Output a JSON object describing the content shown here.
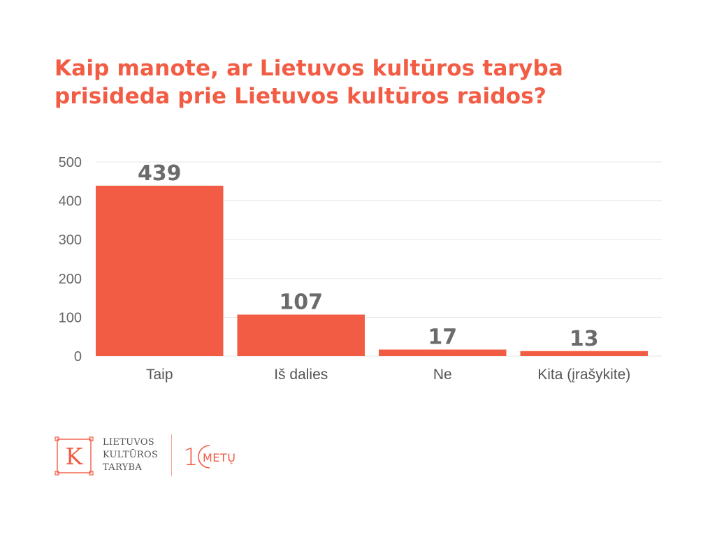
{
  "chart_data": {
    "type": "bar",
    "title": [
      "Kaip manote, ar Lietuvos kultūros taryba",
      "prisideda prie Lietuvos kultūros raidos?"
    ],
    "categories": [
      "Taip",
      "Iš dalies",
      "Ne",
      "Kita (įrašykite)"
    ],
    "values": [
      439,
      107,
      17,
      13
    ],
    "data_labels": [
      "439",
      "107",
      "17",
      "13"
    ],
    "yticks": [
      "0",
      "100",
      "200",
      "300",
      "400",
      "500"
    ],
    "ylim": [
      0,
      500
    ],
    "xlabel": "",
    "ylabel": "",
    "grid": true,
    "legend": "none",
    "colors": {
      "bar": "#f25c44",
      "title": "#f25c44",
      "grid": "#e6e6e6",
      "tick": "#666666",
      "label": "#6b6b6b"
    }
  },
  "branding": {
    "logo_letter": "K",
    "org_lines": [
      "LIETUVOS",
      "KULTŪROS",
      "TARYBA"
    ],
    "anniversary_digit": "1",
    "anniversary_word": "METŲ",
    "logo_icon": "k-frame-logo-icon",
    "years_icon": "ten-years-badge-icon"
  }
}
